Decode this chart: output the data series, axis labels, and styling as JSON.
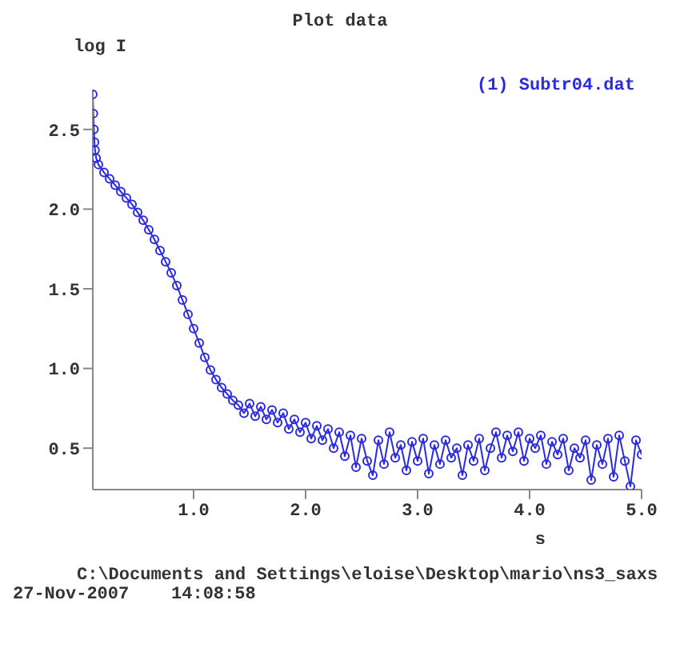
{
  "chart_data": {
    "type": "line",
    "title": "Plot data",
    "xlabel": "s",
    "ylabel": "log I",
    "marker": "circle",
    "legend": "top right",
    "xlim": [
      0.1,
      5.0
    ],
    "ylim": [
      0.24,
      2.75
    ],
    "xticks": [
      {
        "value": 1,
        "label": "1.0"
      },
      {
        "value": 2,
        "label": "2.0"
      },
      {
        "value": 3,
        "label": "3.0"
      },
      {
        "value": 4,
        "label": "4.0"
      },
      {
        "value": 5,
        "label": "5.0"
      }
    ],
    "yticks": [
      {
        "value": 0.5,
        "label": "0.5"
      },
      {
        "value": 1,
        "label": "1.0"
      },
      {
        "value": 1.5,
        "label": "1.5"
      },
      {
        "value": 2,
        "label": "2.0"
      },
      {
        "value": 2.5,
        "label": "2.5"
      }
    ],
    "x": [
      0.1,
      0.105,
      0.11,
      0.115,
      0.12,
      0.13,
      0.15,
      0.2,
      0.25,
      0.3,
      0.35,
      0.4,
      0.45,
      0.5,
      0.55,
      0.6,
      0.65,
      0.7,
      0.75,
      0.8,
      0.85,
      0.9,
      0.95,
      1.0,
      1.05,
      1.1,
      1.15,
      1.2,
      1.25,
      1.3,
      1.35,
      1.4,
      1.45,
      1.5,
      1.55,
      1.6,
      1.65,
      1.7,
      1.75,
      1.8,
      1.85,
      1.9,
      1.95,
      2.0,
      2.05,
      2.1,
      2.15,
      2.2,
      2.25,
      2.3,
      2.35,
      2.4,
      2.45,
      2.5,
      2.55,
      2.6,
      2.65,
      2.7,
      2.75,
      2.8,
      2.85,
      2.9,
      2.95,
      3.0,
      3.05,
      3.1,
      3.15,
      3.2,
      3.25,
      3.3,
      3.35,
      3.4,
      3.45,
      3.5,
      3.55,
      3.6,
      3.65,
      3.7,
      3.75,
      3.8,
      3.85,
      3.9,
      3.95,
      4.0,
      4.05,
      4.1,
      4.15,
      4.2,
      4.25,
      4.3,
      4.35,
      4.4,
      4.45,
      4.5,
      4.55,
      4.6,
      4.65,
      4.7,
      4.75,
      4.8,
      4.85,
      4.9,
      4.95,
      5.0
    ],
    "series": [
      {
        "name": "(1) Subtr04.dat",
        "color": "#2a2ae0",
        "values": [
          2.72,
          2.6,
          2.5,
          2.42,
          2.37,
          2.32,
          2.28,
          2.23,
          2.19,
          2.15,
          2.11,
          2.07,
          2.03,
          1.98,
          1.93,
          1.87,
          1.81,
          1.74,
          1.67,
          1.6,
          1.52,
          1.43,
          1.34,
          1.25,
          1.16,
          1.07,
          0.99,
          0.93,
          0.88,
          0.84,
          0.8,
          0.77,
          0.72,
          0.78,
          0.7,
          0.76,
          0.68,
          0.74,
          0.66,
          0.72,
          0.62,
          0.68,
          0.6,
          0.66,
          0.56,
          0.64,
          0.55,
          0.62,
          0.5,
          0.6,
          0.45,
          0.58,
          0.38,
          0.56,
          0.42,
          0.33,
          0.55,
          0.4,
          0.6,
          0.44,
          0.52,
          0.36,
          0.54,
          0.42,
          0.56,
          0.34,
          0.52,
          0.4,
          0.55,
          0.44,
          0.5,
          0.33,
          0.52,
          0.42,
          0.56,
          0.36,
          0.5,
          0.6,
          0.44,
          0.58,
          0.48,
          0.6,
          0.42,
          0.56,
          0.5,
          0.58,
          0.4,
          0.54,
          0.46,
          0.56,
          0.36,
          0.5,
          0.44,
          0.55,
          0.3,
          0.52,
          0.4,
          0.56,
          0.32,
          0.58,
          0.42,
          0.26,
          0.55,
          0.46
        ]
      }
    ],
    "annotations": [
      "C:\\Documents and Settings\\eloise\\Desktop\\mario\\ns3_saxs",
      "27-Nov-2007    14:08:58"
    ]
  }
}
